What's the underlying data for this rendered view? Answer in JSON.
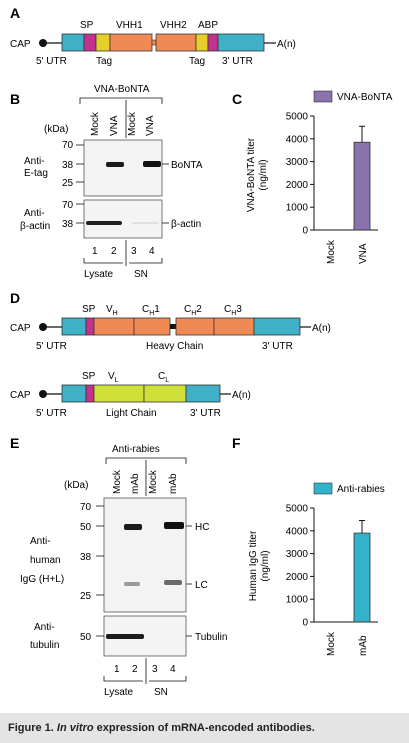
{
  "panels": {
    "A": {
      "letter": "A",
      "cap": "CAP",
      "tail": "A(n)",
      "top_labels": [
        "SP",
        "VHH1",
        "VHH2",
        "ABP"
      ],
      "bottom_labels": [
        "5' UTR",
        "Tag",
        "Tag",
        "3' UTR"
      ]
    },
    "B": {
      "letter": "B",
      "group_title": "VNA-BoNTA",
      "kda": "(kDa)",
      "lanes": [
        "Mock",
        "VNA",
        "Mock",
        "VNA"
      ],
      "top_blot_label": [
        "Anti-",
        "E-tag"
      ],
      "top_markers": [
        "70",
        "38",
        "25"
      ],
      "top_band": "BoNTA",
      "bottom_blot_label": [
        "Anti-",
        "β-actin"
      ],
      "bottom_markers": [
        "70",
        "38"
      ],
      "bottom_band": "β-actin",
      "lane_numbers": [
        "1",
        "2",
        "3",
        "4"
      ],
      "groups": [
        "Lysate",
        "SN"
      ]
    },
    "C": {
      "letter": "C",
      "legend": "VNA-BoNTA",
      "ylabel": [
        "VNA-BoNTA titer",
        "(ng/ml)"
      ]
    },
    "D": {
      "letter": "D",
      "cap": "CAP",
      "tail": "A(n)",
      "heavy_top": [
        "SP",
        "V",
        "C",
        "C",
        "C"
      ],
      "heavy_subs": [
        "H",
        "H",
        "H",
        "H"
      ],
      "heavy_suffix": [
        "1",
        "2",
        "3"
      ],
      "heavy_bottom": [
        "5' UTR",
        "Heavy Chain",
        "3' UTR"
      ],
      "light_top": [
        "SP",
        "V",
        "C"
      ],
      "light_subs": [
        "L",
        "L"
      ],
      "light_bottom": [
        "5' UTR",
        "Light Chain",
        "3' UTR"
      ]
    },
    "E": {
      "letter": "E",
      "group_title": "Anti-rabies",
      "kda": "(kDa)",
      "lanes": [
        "Mock",
        "mAb",
        "Mock",
        "mAb"
      ],
      "top_blot_label": [
        "Anti-",
        "human",
        "IgG (H+L)"
      ],
      "top_markers": [
        "70",
        "50",
        "38",
        "25"
      ],
      "hc": "HC",
      "lc": "LC",
      "bottom_blot_label": [
        "Anti-",
        "tubulin"
      ],
      "bottom_markers": [
        "50"
      ],
      "bottom_band": "Tubulin",
      "lane_numbers": [
        "1",
        "2",
        "3",
        "4"
      ],
      "groups": [
        "Lysate",
        "SN"
      ]
    },
    "F": {
      "letter": "F",
      "legend": "Anti-rabies",
      "ylabel": [
        "Human IgG titer",
        "(ng/ml)"
      ]
    }
  },
  "colors": {
    "utr": "#3fb0c6",
    "sp": "#c2328f",
    "tag": "#e6cf2a",
    "vhh": "#f08a55",
    "light": "#cfe03a",
    "purple": "#8a72ad",
    "cyan": "#33b3cb"
  },
  "chart_data": [
    {
      "type": "bar",
      "categories": [
        "Mock",
        "VNA"
      ],
      "values": [
        0,
        3850
      ],
      "errors": [
        0,
        700
      ],
      "ylabel": "VNA-BoNTA titer (ng/ml)",
      "ylim": [
        0,
        5000
      ],
      "yticks": [
        0,
        1000,
        2000,
        3000,
        4000,
        5000
      ],
      "legend": "VNA-BoNTA"
    },
    {
      "type": "bar",
      "categories": [
        "Mock",
        "mAb"
      ],
      "values": [
        0,
        3900
      ],
      "errors": [
        0,
        550
      ],
      "ylabel": "Human IgG titer (ng/ml)",
      "ylim": [
        0,
        5000
      ],
      "yticks": [
        0,
        1000,
        2000,
        3000,
        4000,
        5000
      ],
      "legend": "Anti-rabies"
    }
  ],
  "caption": {
    "prefix": "Figure 1.",
    "italic": "In vitro",
    "rest": "expression of mRNA-encoded antibodies."
  }
}
